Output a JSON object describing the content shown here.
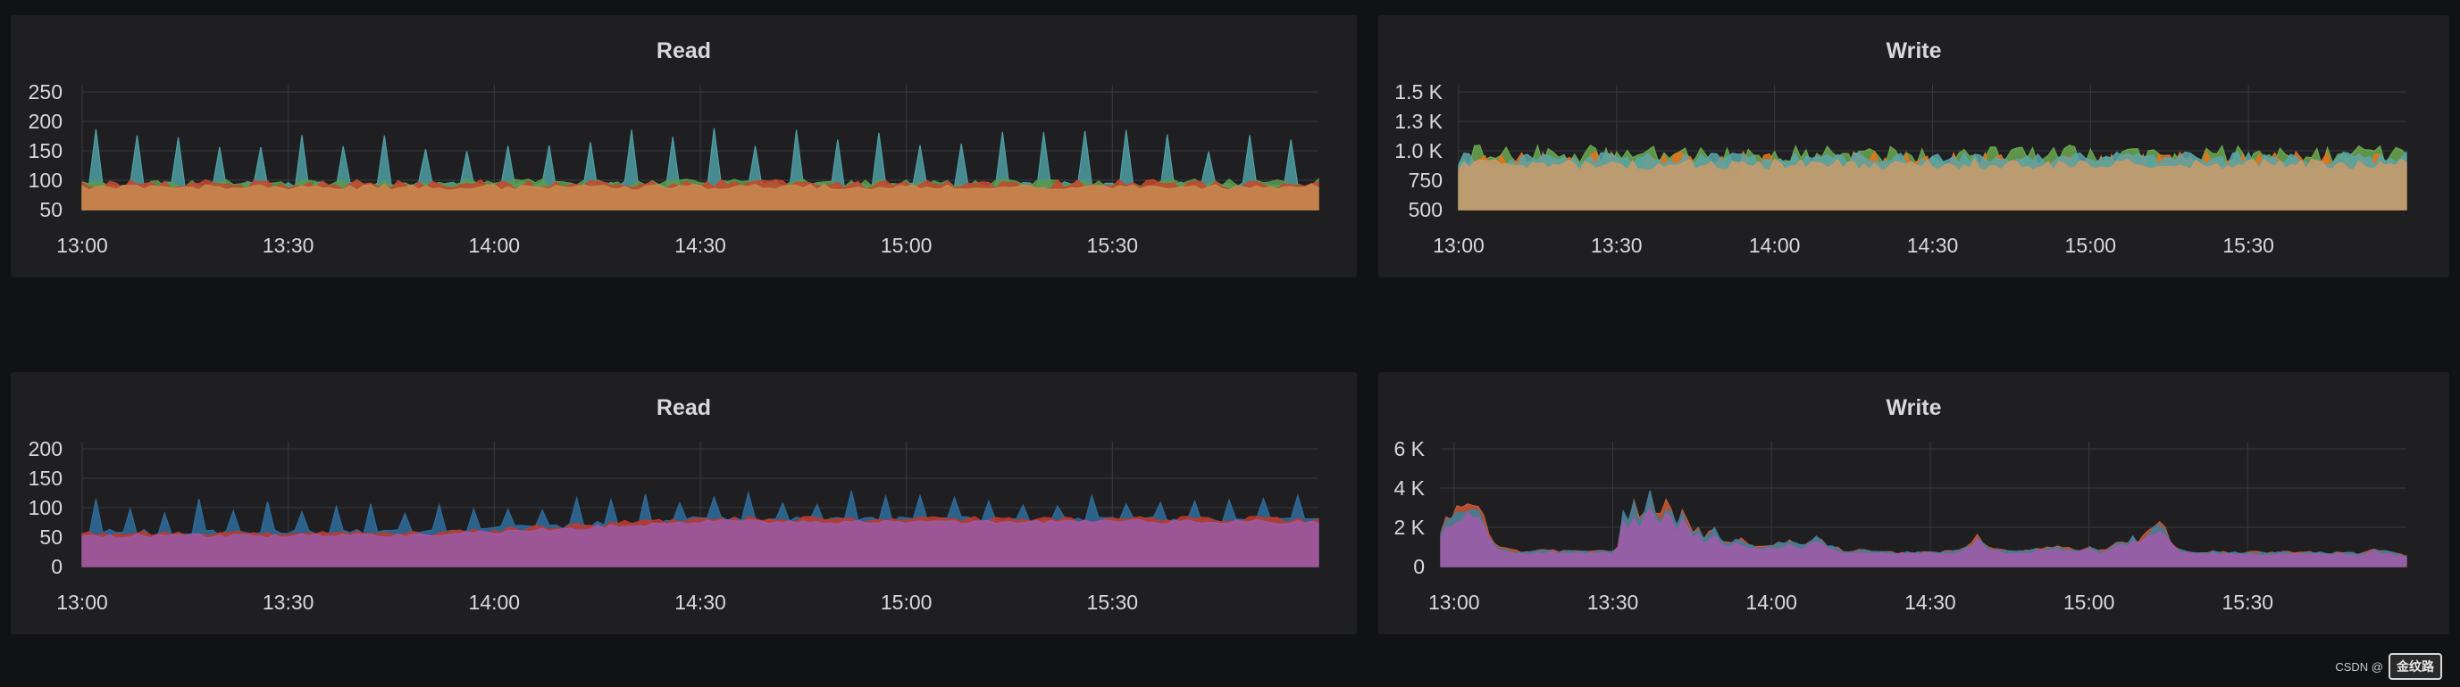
{
  "chart_data": [
    {
      "id": "read-top",
      "type": "area",
      "title": "Read",
      "x_ticks": [
        "13:00",
        "13:30",
        "14:00",
        "14:30",
        "15:00",
        "15:30"
      ],
      "x_range_minutes": [
        0,
        180
      ],
      "y_ticks": [
        "250",
        "200",
        "150",
        "100",
        "50"
      ],
      "y_tick_values": [
        250,
        200,
        150,
        100,
        50
      ],
      "ylim": [
        50,
        250
      ],
      "series": [
        {
          "name": "series-teal",
          "color": "#4f9fa3",
          "style": "spiky",
          "base": 92,
          "noise": 6,
          "spike_every": 6,
          "spike_height": 172
        },
        {
          "name": "series-green",
          "color": "#5a9a4e",
          "style": "noisy",
          "base": 95,
          "noise": 7
        },
        {
          "name": "series-red",
          "color": "#c4482f",
          "style": "noisy",
          "base": 93,
          "noise": 8
        },
        {
          "name": "series-orange",
          "color": "#c88a4f",
          "style": "noisy",
          "base": 88,
          "noise": 5
        }
      ]
    },
    {
      "id": "write-top",
      "type": "area",
      "title": "Write",
      "x_ticks": [
        "13:00",
        "13:30",
        "14:00",
        "14:30",
        "15:00",
        "15:30"
      ],
      "x_range_minutes": [
        0,
        180
      ],
      "y_ticks": [
        "1.5 K",
        "1.3 K",
        "1.0 K",
        "750",
        "500"
      ],
      "y_tick_values": [
        1500,
        1250,
        1000,
        750,
        500
      ],
      "ylim": [
        500,
        1500
      ],
      "series": [
        {
          "name": "series-green",
          "color": "#6aa84f",
          "style": "noisy",
          "base": 960,
          "noise": 90
        },
        {
          "name": "series-orange-line",
          "color": "#e8721e",
          "style": "noisy",
          "base": 900,
          "noise": 95
        },
        {
          "name": "series-teal",
          "color": "#5ba5a8",
          "style": "noisy",
          "base": 930,
          "noise": 60
        },
        {
          "name": "series-tan",
          "color": "#c99a6a",
          "style": "noisy",
          "base": 880,
          "noise": 50
        }
      ]
    },
    {
      "id": "read-bottom",
      "type": "area",
      "title": "Read",
      "x_ticks": [
        "13:00",
        "13:30",
        "14:00",
        "14:30",
        "15:00",
        "15:30"
      ],
      "x_range_minutes": [
        0,
        180
      ],
      "y_ticks": [
        "200",
        "150",
        "100",
        "50",
        "0"
      ],
      "y_tick_values": [
        200,
        150,
        100,
        50,
        0
      ],
      "ylim": [
        0,
        200
      ],
      "series": [
        {
          "name": "series-blue",
          "color": "#2f6d9c",
          "style": "spiky",
          "base": 58,
          "noise": 5,
          "spike_every": 5,
          "spike_height": 105,
          "ramp": 22
        },
        {
          "name": "series-red",
          "color": "#c0392b",
          "style": "noisy",
          "base": 56,
          "noise": 5,
          "ramp": 24
        },
        {
          "name": "series-purple",
          "color": "#9b5aa6",
          "style": "noisy",
          "base": 52,
          "noise": 4,
          "ramp": 24
        }
      ]
    },
    {
      "id": "write-bottom",
      "type": "area",
      "title": "Write",
      "x_ticks": [
        "13:00",
        "13:30",
        "14:00",
        "14:30",
        "15:00",
        "15:30"
      ],
      "x_range_minutes": [
        -2.5,
        180
      ],
      "y_ticks": [
        "6 K",
        "4 K",
        "2 K",
        "0"
      ],
      "y_tick_values": [
        6000,
        4000,
        2000,
        0
      ],
      "ylim": [
        0,
        6000
      ],
      "series": [
        {
          "name": "series-red",
          "color": "#c65a3a",
          "style": "profile",
          "scale": 1.08
        },
        {
          "name": "series-teal",
          "color": "#3f7f9a",
          "style": "profile",
          "scale": 1.04
        },
        {
          "name": "series-purple",
          "color": "#a05ba8",
          "style": "profile",
          "scale": 0.93
        }
      ],
      "profile": [
        [
          -2.5,
          1500
        ],
        [
          -1,
          2600
        ],
        [
          0,
          1900
        ],
        [
          1,
          3200
        ],
        [
          2,
          2100
        ],
        [
          3,
          3400
        ],
        [
          4,
          2500
        ],
        [
          5,
          2900
        ],
        [
          6,
          1800
        ],
        [
          7,
          1200
        ],
        [
          8,
          900
        ],
        [
          10,
          800
        ],
        [
          12,
          700
        ],
        [
          20,
          750
        ],
        [
          30,
          700
        ],
        [
          31,
          1000
        ],
        [
          32,
          2600
        ],
        [
          33,
          2200
        ],
        [
          34,
          2900
        ],
        [
          35,
          2100
        ],
        [
          36,
          2800
        ],
        [
          37,
          3500
        ],
        [
          38,
          2600
        ],
        [
          39,
          2300
        ],
        [
          40,
          3000
        ],
        [
          41,
          2500
        ],
        [
          42,
          1900
        ],
        [
          43,
          2700
        ],
        [
          44,
          2100
        ],
        [
          45,
          1600
        ],
        [
          46,
          1800
        ],
        [
          47,
          1300
        ],
        [
          48,
          1500
        ],
        [
          49,
          1900
        ],
        [
          50,
          1300
        ],
        [
          52,
          1100
        ],
        [
          54,
          1300
        ],
        [
          56,
          1000
        ],
        [
          58,
          900
        ],
        [
          60,
          1000
        ],
        [
          62,
          1100
        ],
        [
          64,
          1200
        ],
        [
          66,
          900
        ],
        [
          68,
          1500
        ],
        [
          70,
          1100
        ],
        [
          72,
          900
        ],
        [
          74,
          700
        ],
        [
          76,
          800
        ],
        [
          80,
          700
        ],
        [
          84,
          650
        ],
        [
          88,
          700
        ],
        [
          92,
          700
        ],
        [
          96,
          800
        ],
        [
          98,
          1100
        ],
        [
          99,
          1500
        ],
        [
          100,
          1100
        ],
        [
          102,
          800
        ],
        [
          106,
          700
        ],
        [
          110,
          800
        ],
        [
          114,
          900
        ],
        [
          118,
          800
        ],
        [
          120,
          900
        ],
        [
          122,
          700
        ],
        [
          124,
          900
        ],
        [
          126,
          1300
        ],
        [
          127,
          900
        ],
        [
          128,
          1500
        ],
        [
          129,
          1100
        ],
        [
          130,
          1400
        ],
        [
          132,
          1700
        ],
        [
          133,
          2100
        ],
        [
          134,
          1900
        ],
        [
          135,
          1400
        ],
        [
          136,
          1000
        ],
        [
          137,
          800
        ],
        [
          140,
          700
        ],
        [
          150,
          650
        ],
        [
          160,
          650
        ],
        [
          170,
          650
        ],
        [
          172,
          600
        ],
        [
          174,
          800
        ],
        [
          176,
          700
        ],
        [
          178,
          600
        ],
        [
          180,
          500
        ]
      ]
    }
  ],
  "watermark": {
    "text": "CSDN @",
    "logo_text": "金纹路"
  }
}
